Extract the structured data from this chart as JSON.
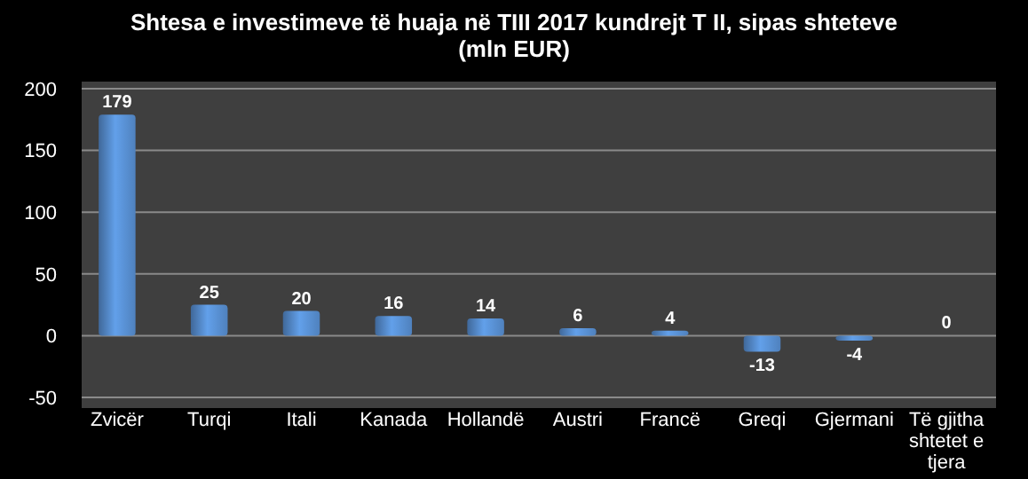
{
  "chart_data": {
    "type": "bar",
    "title": "Shtesa e investimeve të huaja në TIII 2017 kundrejt T II, sipas shteteve (mln EUR)",
    "categories": [
      "Zvicër",
      "Turqi",
      "Itali",
      "Kanada",
      "Hollandë",
      "Austri",
      "Francë",
      "Greqi",
      "Gjermani",
      "Të gjitha shtetet e tjera"
    ],
    "values": [
      179,
      25,
      20,
      16,
      14,
      6,
      4,
      -13,
      -4,
      0
    ],
    "color": "#4f81bd",
    "ylim": [
      -50,
      200
    ],
    "yticks": [
      -50,
      0,
      50,
      100,
      150,
      200
    ],
    "grid": "y",
    "data_labels": true
  }
}
